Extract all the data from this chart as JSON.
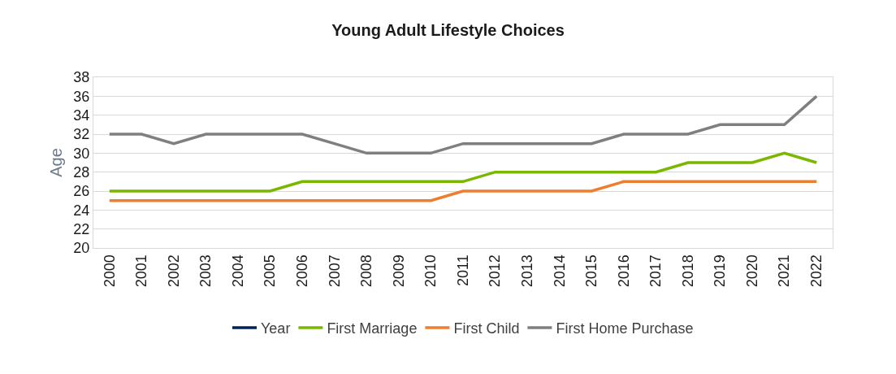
{
  "chart_data": {
    "type": "line",
    "title": "Young Adult Lifestyle Choices",
    "ylabel": "Age",
    "categories": [
      "2000",
      "2001",
      "2002",
      "2003",
      "2004",
      "2005",
      "2006",
      "2007",
      "2008",
      "2009",
      "2010",
      "2011",
      "2012",
      "2013",
      "2014",
      "2015",
      "2016",
      "2017",
      "2018",
      "2019",
      "2020",
      "2021",
      "2022"
    ],
    "series": [
      {
        "name": "Year",
        "color": "#002060",
        "values": [
          null,
          null,
          null,
          null,
          null,
          null,
          null,
          null,
          null,
          null,
          null,
          null,
          null,
          null,
          null,
          null,
          null,
          null,
          null,
          null,
          null,
          null,
          null
        ]
      },
      {
        "name": "First Marriage",
        "color": "#7ab800",
        "values": [
          26,
          26,
          26,
          26,
          26,
          26,
          27,
          27,
          27,
          27,
          27,
          27,
          28,
          28,
          28,
          28,
          28,
          28,
          29,
          29,
          29,
          30,
          29
        ]
      },
      {
        "name": "First Child",
        "color": "#ed7d31",
        "values": [
          25,
          25,
          25,
          25,
          25,
          25,
          25,
          25,
          25,
          25,
          25,
          26,
          26,
          26,
          26,
          26,
          27,
          27,
          27,
          27,
          27,
          27,
          27
        ]
      },
      {
        "name": "First Home Purchase",
        "color": "#7f7f7f",
        "values": [
          32,
          32,
          31,
          32,
          32,
          32,
          32,
          31,
          30,
          30,
          30,
          31,
          31,
          31,
          31,
          31,
          32,
          32,
          32,
          33,
          33,
          33,
          36
        ]
      }
    ],
    "ylim": [
      20,
      38
    ],
    "yticks": [
      20,
      22,
      24,
      26,
      28,
      30,
      32,
      34,
      36,
      38
    ],
    "grid": "y",
    "legend": "bottom",
    "marker": "none",
    "line_style": "solid"
  }
}
